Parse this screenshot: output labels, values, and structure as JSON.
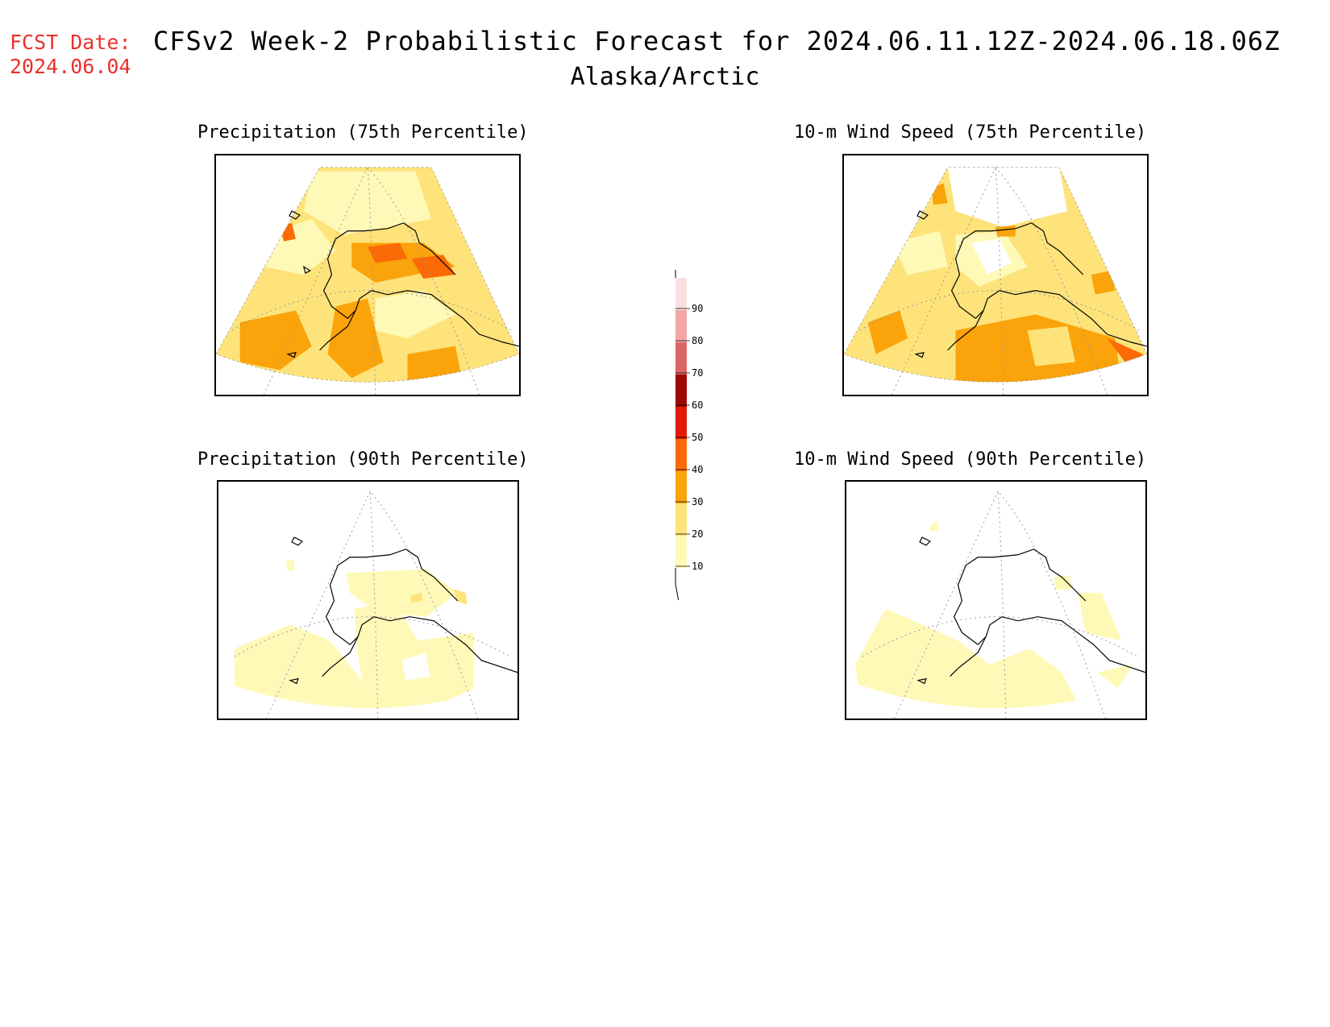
{
  "header": {
    "fcst_label": "FCST Date:",
    "fcst_date": "2024.06.04",
    "title": "CFSv2 Week-2 Probabilistic Forecast for 2024.06.11.12Z-2024.06.18.06Z",
    "subtitle": "Alaska/Arctic"
  },
  "panels": {
    "precip75": {
      "title": "Precipitation (75th Percentile)"
    },
    "wind75": {
      "title": "10-m Wind Speed (75th Percentile)"
    },
    "precip90": {
      "title": "Precipitation (90th Percentile)"
    },
    "wind90": {
      "title": "10-m Wind Speed (90th Percentile)"
    }
  },
  "colorbar": {
    "labels": [
      "10",
      "20",
      "30",
      "40",
      "50",
      "60",
      "70",
      "80",
      "90"
    ],
    "colors": [
      "#fff9b8",
      "#fde37a",
      "#fba30a",
      "#fb6a06",
      "#e01a06",
      "#9e0a06",
      "#dc6666",
      "#f2a6a6",
      "#fbe0e0"
    ]
  }
}
